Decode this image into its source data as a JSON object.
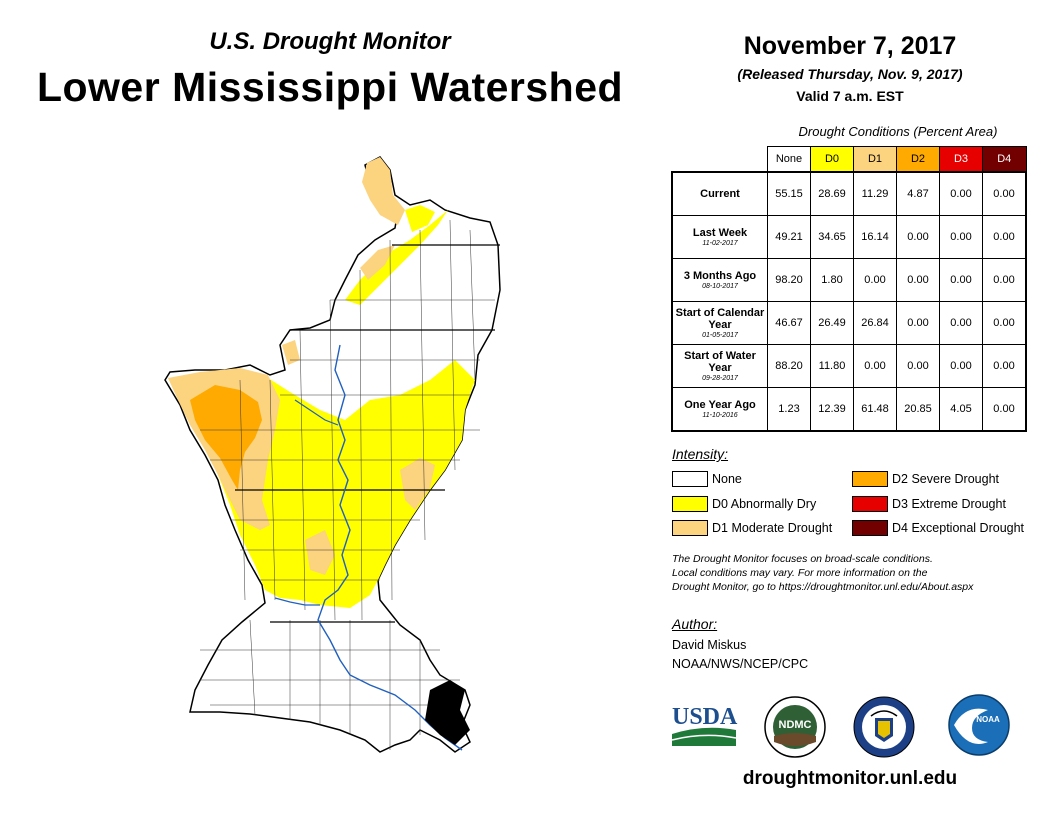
{
  "header": {
    "subtitle": "U.S. Drought Monitor",
    "title": "Lower Mississippi Watershed",
    "date": "November 7, 2017",
    "released": "(Released Thursday, Nov. 9, 2017)",
    "valid": "Valid 7 a.m. EST"
  },
  "table": {
    "caption": "Drought Conditions (Percent Area)",
    "columns": [
      "None",
      "D0",
      "D1",
      "D2",
      "D3",
      "D4"
    ],
    "column_colors": [
      "#ffffff",
      "#ffff00",
      "#fcd37f",
      "#ffaa00",
      "#e60000",
      "#730000"
    ],
    "rows": [
      {
        "label": "Current",
        "sublabel": "",
        "values": [
          "55.15",
          "28.69",
          "11.29",
          "4.87",
          "0.00",
          "0.00"
        ]
      },
      {
        "label": "Last Week",
        "sublabel": "11-02-2017",
        "values": [
          "49.21",
          "34.65",
          "16.14",
          "0.00",
          "0.00",
          "0.00"
        ]
      },
      {
        "label": "3 Months Ago",
        "sublabel": "08-10-2017",
        "values": [
          "98.20",
          "1.80",
          "0.00",
          "0.00",
          "0.00",
          "0.00"
        ]
      },
      {
        "label": "Start of Calendar Year",
        "sublabel": "01-05-2017",
        "values": [
          "46.67",
          "26.49",
          "26.84",
          "0.00",
          "0.00",
          "0.00"
        ]
      },
      {
        "label": "Start of Water Year",
        "sublabel": "09-28-2017",
        "values": [
          "88.20",
          "11.80",
          "0.00",
          "0.00",
          "0.00",
          "0.00"
        ]
      },
      {
        "label": "One Year Ago",
        "sublabel": "11-10-2016",
        "values": [
          "1.23",
          "12.39",
          "61.48",
          "20.85",
          "4.05",
          "0.00"
        ]
      }
    ]
  },
  "legend": {
    "title": "Intensity:",
    "items": [
      {
        "label": "None",
        "color": "#ffffff"
      },
      {
        "label": "D0 Abnormally Dry",
        "color": "#ffff00"
      },
      {
        "label": "D1 Moderate Drought",
        "color": "#fcd37f"
      },
      {
        "label": "D2 Severe Drought",
        "color": "#ffaa00"
      },
      {
        "label": "D3 Extreme Drought",
        "color": "#e60000"
      },
      {
        "label": "D4 Exceptional Drought",
        "color": "#730000"
      }
    ]
  },
  "note": {
    "line1": "The Drought Monitor focuses on broad-scale conditions.",
    "line2": "Local conditions may vary. For more information on the",
    "line3": "Drought Monitor, go to https://droughtmonitor.unl.edu/About.aspx"
  },
  "author": {
    "label": "Author:",
    "name": "David Miskus",
    "org": "NOAA/NWS/NCEP/CPC"
  },
  "logos": {
    "usda": "USDA",
    "ndmc": "NDMC",
    "noaa": "NOAA"
  },
  "website": "droughtmonitor.unl.edu"
}
